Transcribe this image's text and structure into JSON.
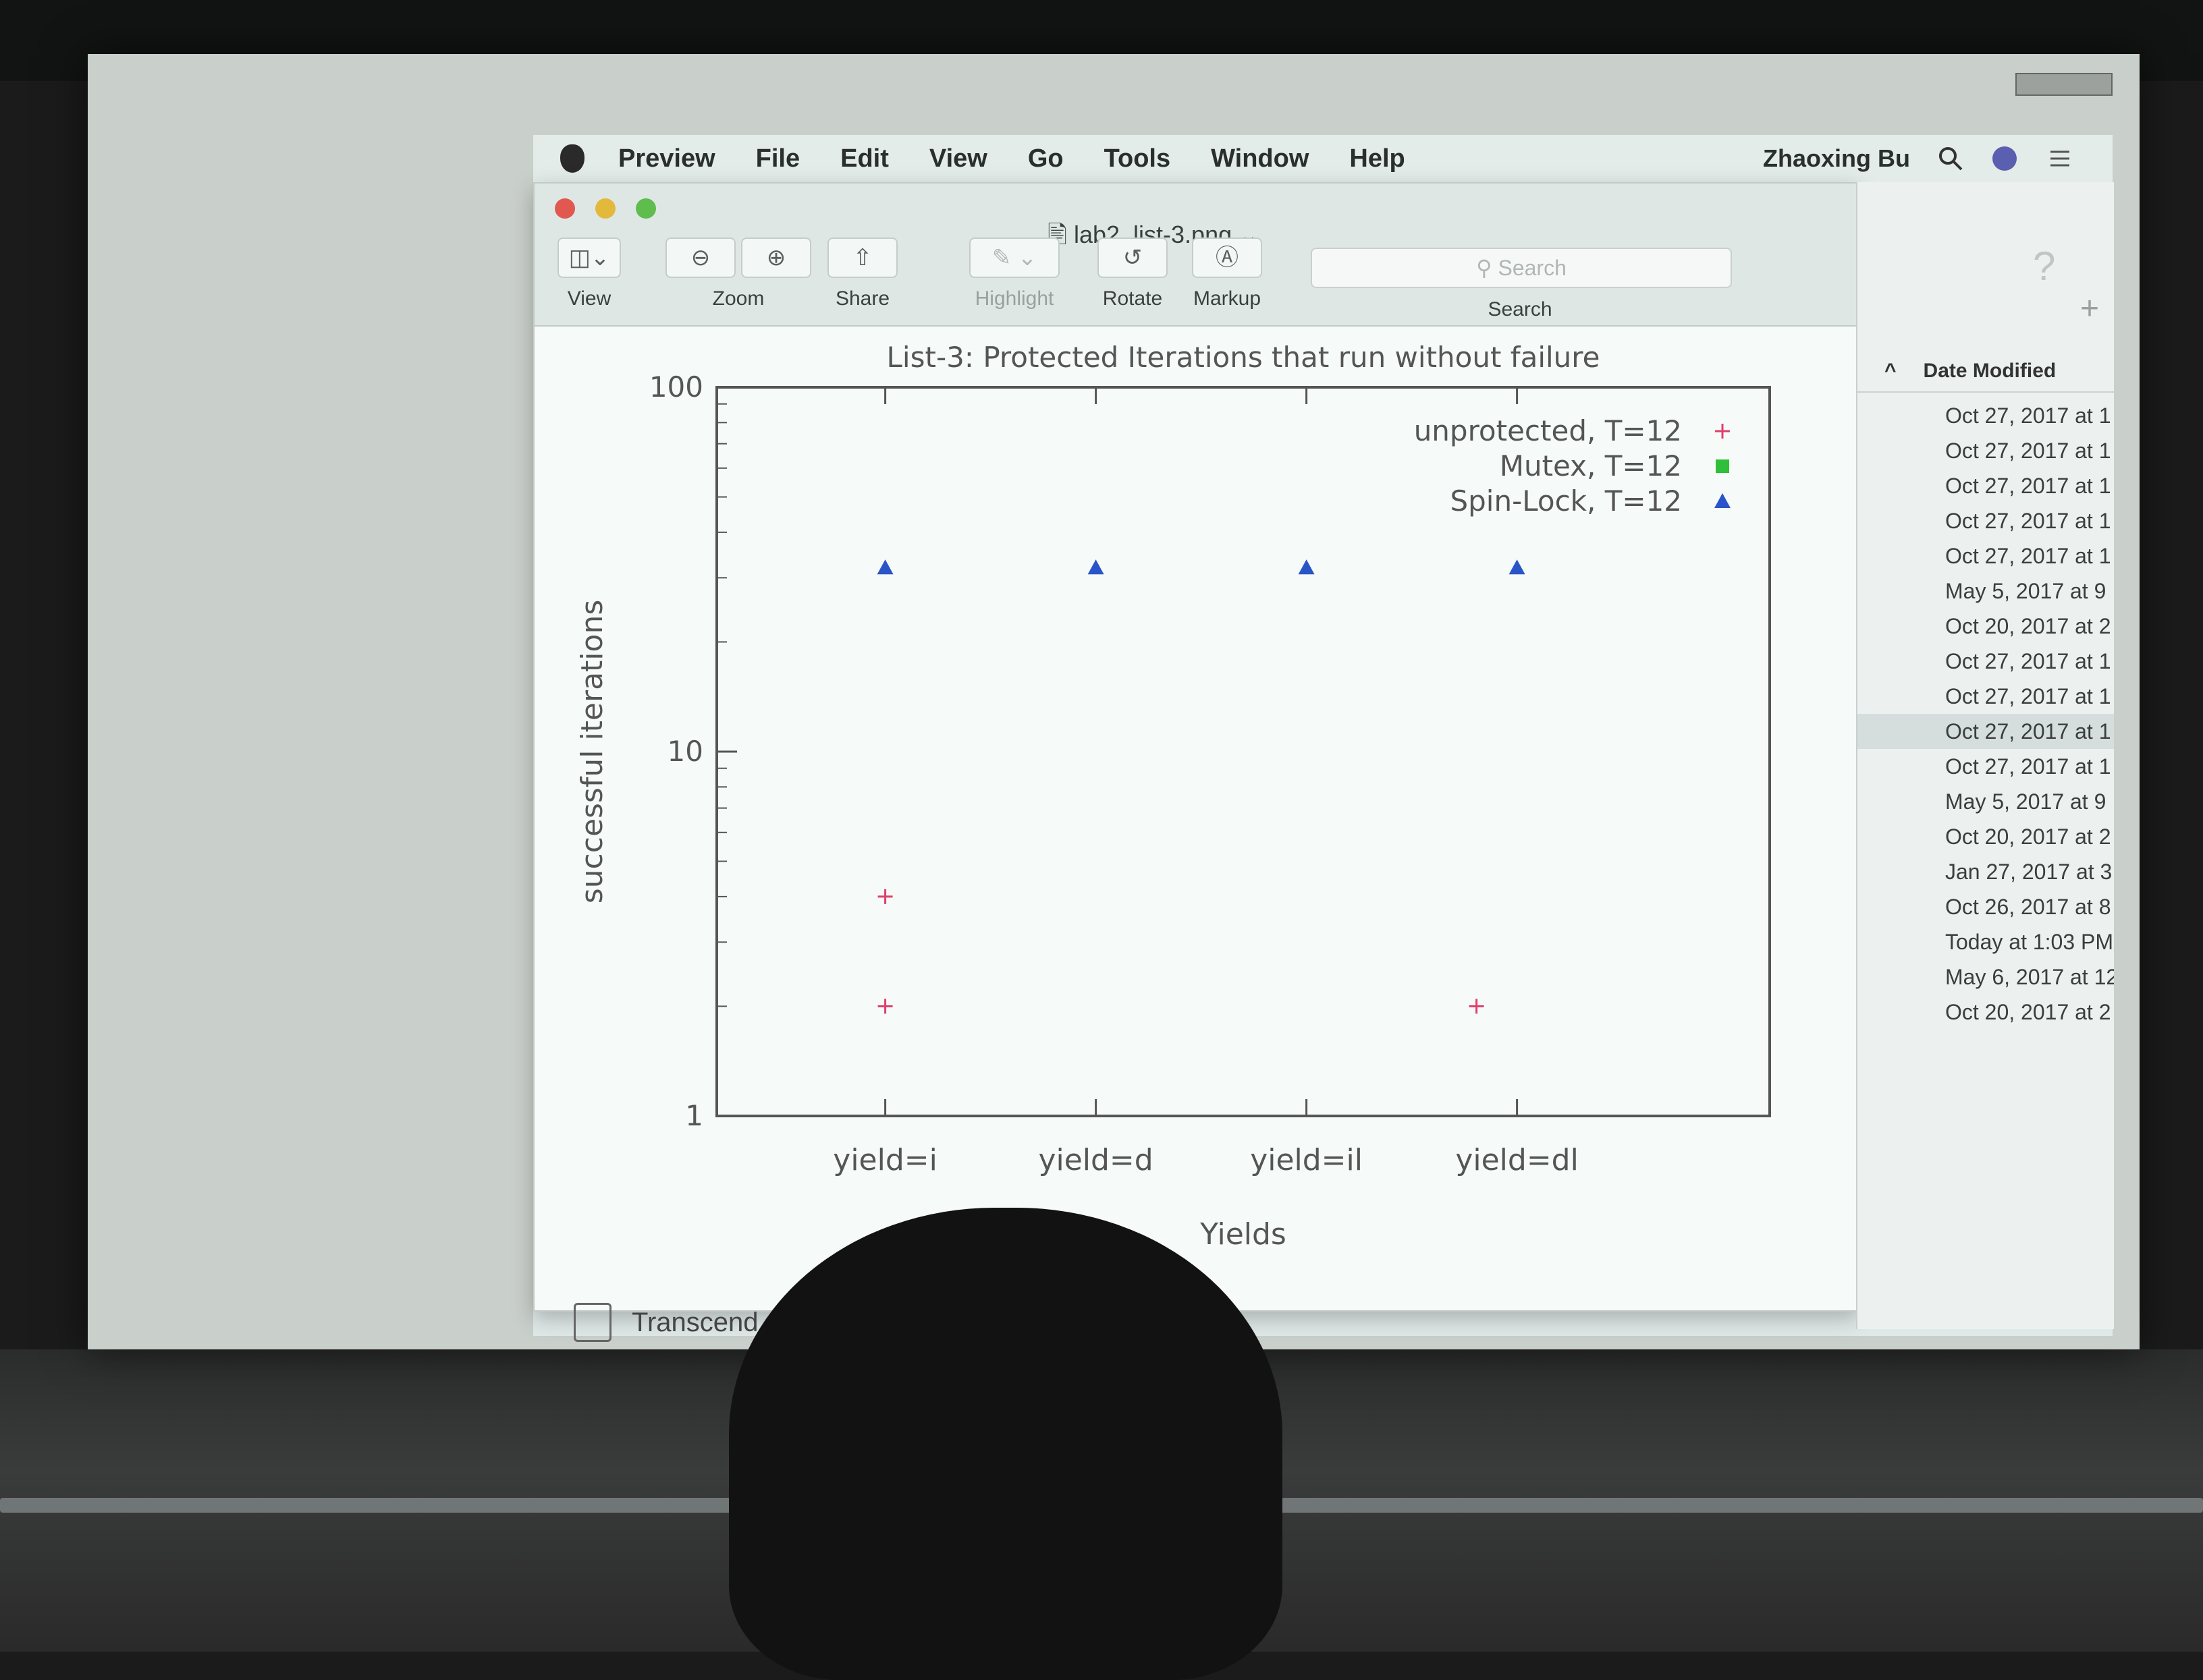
{
  "menubar": {
    "app_name": "Preview",
    "items": [
      "File",
      "Edit",
      "View",
      "Go",
      "Tools",
      "Window",
      "Help"
    ],
    "user": "Zhaoxing Bu"
  },
  "window": {
    "title": "lab2_list-3.png",
    "toolbar": {
      "view_label": "View",
      "zoom_label": "Zoom",
      "share_label": "Share",
      "highlight_label": "Highlight",
      "rotate_label": "Rotate",
      "markup_label": "Markup",
      "search_placeholder": "Search",
      "search_label": "Search"
    }
  },
  "sidebar": {
    "device": "Transcend"
  },
  "finder": {
    "column_header": "Date Modified",
    "dates": [
      "Oct 27, 2017 at 1",
      "Oct 27, 2017 at 1",
      "Oct 27, 2017 at 1",
      "Oct 27, 2017 at 1",
      "Oct 27, 2017 at 1",
      "May 5, 2017 at 9",
      "Oct 20, 2017 at 2",
      "Oct 27, 2017 at 1",
      "Oct 27, 2017 at 1",
      "Oct 27, 2017 at 1",
      "Oct 27, 2017 at 1",
      "May 5, 2017 at 9",
      "Oct 20, 2017 at 2",
      "Jan 27, 2017 at 3",
      "Oct 26, 2017 at 8",
      "Today at 1:03 PM",
      "May 6, 2017 at 12",
      "Oct 20, 2017 at 2"
    ],
    "selected_index": 9
  },
  "colors": {
    "unprotected": "#e0406a",
    "mutex": "#2fbf3a",
    "spinlock": "#2a55c8"
  },
  "chart_data": {
    "type": "scatter",
    "title": "List-3: Protected Iterations that run without failure",
    "xlabel": "Yields",
    "ylabel": "successful iterations",
    "categories": [
      "yield=i",
      "yield=d",
      "yield=il",
      "yield=dl"
    ],
    "y_scale": "log",
    "ylim": [
      1,
      100
    ],
    "y_ticks": [
      "1",
      "10",
      "100"
    ],
    "legend_position": "top-right",
    "series": [
      {
        "name": "unprotected, T=12",
        "marker": "plus",
        "points": [
          {
            "x": "yield=i",
            "y": 4
          },
          {
            "x": "yield=i",
            "y": 2
          },
          {
            "x": "yield=dl",
            "y": 2
          }
        ]
      },
      {
        "name": "Mutex, T=12",
        "marker": "square",
        "points": []
      },
      {
        "name": "Spin-Lock, T=12",
        "marker": "triangle",
        "points": [
          {
            "x": "yield=i",
            "y": 32
          },
          {
            "x": "yield=d",
            "y": 32
          },
          {
            "x": "yield=il",
            "y": 32
          },
          {
            "x": "yield=dl",
            "y": 32
          }
        ]
      }
    ]
  }
}
